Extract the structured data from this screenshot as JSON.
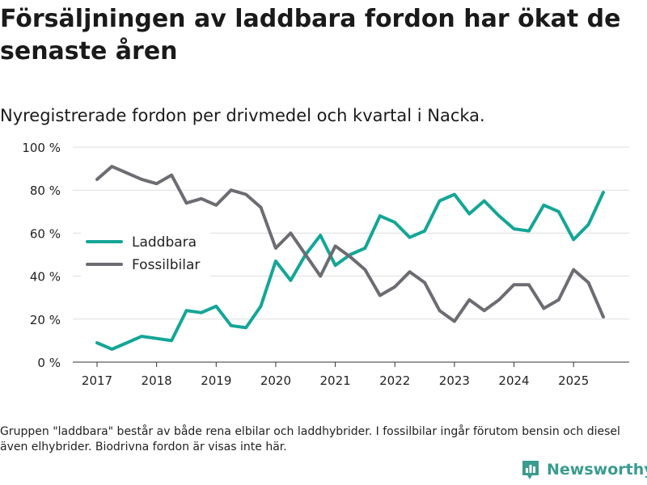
{
  "title": "Försäljningen av laddbara fordon har ökat de senaste åren",
  "subtitle": "Nyregistrerade fordon per drivmedel och kvartal i Nacka.",
  "note": "Gruppen \"laddbara\" består av både rena elbilar och laddhybrider. I fossilbilar ingår förutom bensin och diesel även elhybrider. Biodrivna fordon är visas inte här.",
  "brand": "Newsworthy",
  "colors": {
    "laddbara": "#14a697",
    "fossil": "#6d6c72",
    "grid": "#dddddd",
    "axis": "#333333"
  },
  "chart_data": {
    "type": "line",
    "title": "Nyregistrerade fordon per drivmedel och kvartal i Nacka.",
    "xlabel": "",
    "ylabel": "",
    "ylim": [
      0,
      100
    ],
    "y_ticks": [
      "0 %",
      "20 %",
      "40 %",
      "60 %",
      "80 %",
      "100 %"
    ],
    "x_ticks": [
      "2017",
      "2018",
      "2019",
      "2020",
      "2021",
      "2022",
      "2023",
      "2024",
      "2025"
    ],
    "legend": [
      "Laddbara",
      "Fossilbilar"
    ],
    "legend_position": "left",
    "x": [
      "2017 Q1",
      "2017 Q2",
      "2017 Q3",
      "2017 Q4",
      "2018 Q1",
      "2018 Q2",
      "2018 Q3",
      "2018 Q4",
      "2019 Q1",
      "2019 Q2",
      "2019 Q3",
      "2019 Q4",
      "2020 Q1",
      "2020 Q2",
      "2020 Q3",
      "2020 Q4",
      "2021 Q1",
      "2021 Q2",
      "2021 Q3",
      "2021 Q4",
      "2022 Q1",
      "2022 Q2",
      "2022 Q3",
      "2022 Q4",
      "2023 Q1",
      "2023 Q2",
      "2023 Q3",
      "2023 Q4",
      "2024 Q1",
      "2024 Q2",
      "2024 Q3",
      "2024 Q4",
      "2025 Q1",
      "2025 Q2",
      "2025 Q3"
    ],
    "series": [
      {
        "name": "Laddbara",
        "values": [
          9,
          6,
          9,
          12,
          11,
          10,
          24,
          23,
          26,
          17,
          16,
          26,
          47,
          38,
          50,
          59,
          45,
          50,
          53,
          68,
          65,
          58,
          61,
          75,
          78,
          69,
          75,
          68,
          62,
          61,
          73,
          70,
          57,
          64,
          79
        ]
      },
      {
        "name": "Fossilbilar",
        "values": [
          85,
          91,
          88,
          85,
          83,
          87,
          74,
          76,
          73,
          80,
          78,
          72,
          53,
          60,
          50,
          40,
          54,
          49,
          43,
          31,
          35,
          42,
          37,
          24,
          19,
          29,
          24,
          29,
          36,
          36,
          25,
          29,
          43,
          37,
          21
        ]
      }
    ]
  }
}
